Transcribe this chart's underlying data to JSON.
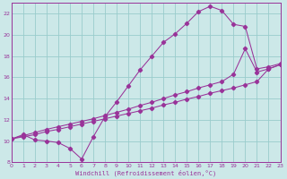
{
  "background_color": "#cce8e8",
  "grid_color": "#99cccc",
  "line_color": "#993399",
  "xlim": [
    0,
    23
  ],
  "ylim": [
    8,
    23
  ],
  "xticks": [
    0,
    1,
    2,
    3,
    4,
    5,
    6,
    7,
    8,
    9,
    10,
    11,
    12,
    13,
    14,
    15,
    16,
    17,
    18,
    19,
    20,
    21,
    22,
    23
  ],
  "yticks": [
    8,
    10,
    12,
    14,
    16,
    18,
    20,
    22
  ],
  "xlabel": "Windchill (Refroidissement éolien,°C)",
  "line1_x": [
    0,
    1,
    2,
    3,
    4,
    5,
    6,
    7,
    8,
    9,
    10,
    11,
    12,
    13,
    14,
    15,
    16,
    17,
    18,
    19,
    20,
    21,
    22,
    23
  ],
  "line1_y": [
    10.2,
    10.6,
    10.1,
    10.0,
    9.85,
    9.3,
    8.3,
    10.4,
    12.3,
    13.7,
    15.2,
    16.7,
    18.0,
    19.3,
    20.1,
    21.1,
    22.2,
    22.7,
    22.3,
    21.0,
    20.8,
    16.8,
    17.0,
    17.3
  ],
  "line2_x": [
    0,
    1,
    2,
    3,
    4,
    5,
    6,
    7,
    8,
    9,
    10,
    11,
    12,
    13,
    14,
    15,
    16,
    17,
    18,
    19,
    20,
    21,
    22,
    23
  ],
  "line2_y": [
    10.2,
    10.5,
    10.8,
    11.1,
    11.35,
    11.6,
    11.85,
    12.1,
    12.4,
    12.7,
    13.0,
    13.35,
    13.65,
    14.0,
    14.35,
    14.65,
    15.0,
    15.3,
    15.6,
    16.3,
    18.7,
    16.5,
    16.8,
    17.2
  ],
  "line3_x": [
    0,
    1,
    2,
    3,
    4,
    5,
    6,
    7,
    8,
    9,
    10,
    11,
    12,
    13,
    14,
    15,
    16,
    17,
    18,
    19,
    20,
    21,
    22,
    23
  ],
  "line3_y": [
    10.2,
    10.4,
    10.6,
    10.9,
    11.1,
    11.35,
    11.6,
    11.85,
    12.1,
    12.35,
    12.6,
    12.85,
    13.1,
    13.4,
    13.65,
    13.95,
    14.2,
    14.5,
    14.75,
    15.0,
    15.3,
    15.6,
    16.8,
    17.2
  ]
}
